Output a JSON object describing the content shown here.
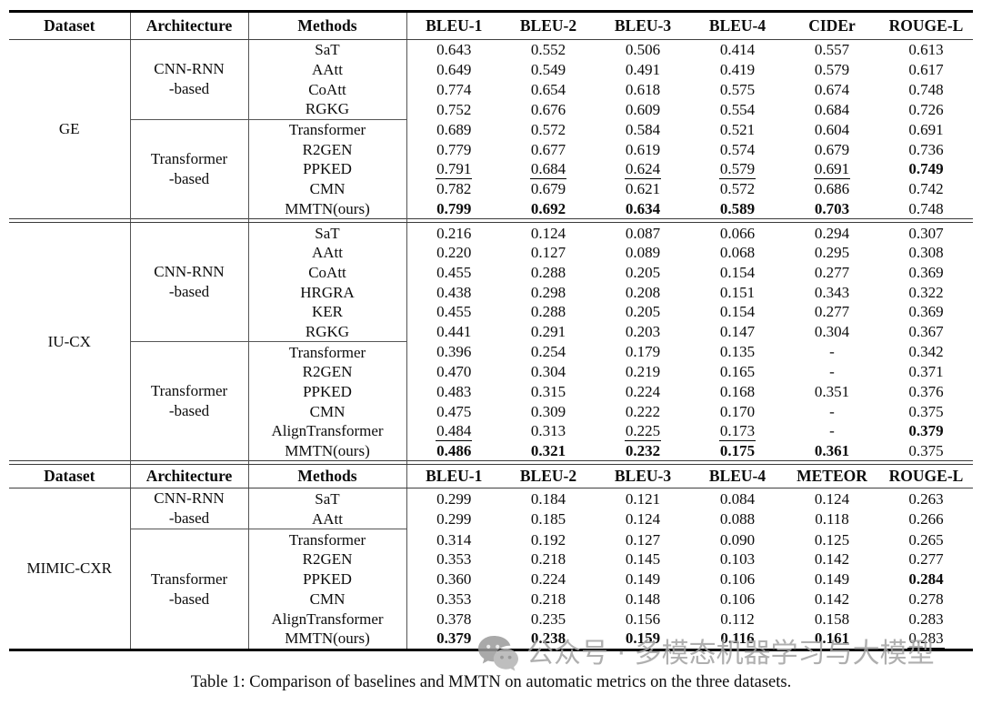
{
  "colors": {
    "text": "#0c0c0c",
    "thin_rule": "#555555",
    "thick_rule": "#000000",
    "watermark": "#a2a2a2"
  },
  "table": {
    "header1": {
      "dataset": "Dataset",
      "architecture": "Architecture",
      "methods": "Methods",
      "metrics": [
        "BLEU-1",
        "BLEU-2",
        "BLEU-3",
        "BLEU-4",
        "CIDEr",
        "ROUGE-L"
      ]
    },
    "header2": {
      "dataset": "Dataset",
      "architecture": "Architecture",
      "methods": "Methods",
      "metrics": [
        "BLEU-1",
        "BLEU-2",
        "BLEU-3",
        "BLEU-4",
        "METEOR",
        "ROUGE-L"
      ]
    },
    "sections": [
      {
        "dataset": "GE",
        "repeat_header": false,
        "groups": [
          {
            "architecture": "CNN-RNN\n-based",
            "rows": [
              {
                "method": "SaT",
                "values": [
                  "0.643",
                  "0.552",
                  "0.506",
                  "0.414",
                  "0.557",
                  "0.613"
                ],
                "styles": [
                  "",
                  "",
                  "",
                  "",
                  "",
                  ""
                ]
              },
              {
                "method": "AAtt",
                "values": [
                  "0.649",
                  "0.549",
                  "0.491",
                  "0.419",
                  "0.579",
                  "0.617"
                ],
                "styles": [
                  "",
                  "",
                  "",
                  "",
                  "",
                  ""
                ]
              },
              {
                "method": "CoAtt",
                "values": [
                  "0.774",
                  "0.654",
                  "0.618",
                  "0.575",
                  "0.674",
                  "0.748"
                ],
                "styles": [
                  "",
                  "",
                  "",
                  "",
                  "",
                  "u"
                ]
              },
              {
                "method": "RGKG",
                "values": [
                  "0.752",
                  "0.676",
                  "0.609",
                  "0.554",
                  "0.684",
                  "0.726"
                ],
                "styles": [
                  "",
                  "",
                  "",
                  "",
                  "",
                  ""
                ]
              }
            ]
          },
          {
            "architecture": "Transformer\n-based",
            "rows": [
              {
                "method": "Transformer",
                "values": [
                  "0.689",
                  "0.572",
                  "0.584",
                  "0.521",
                  "0.604",
                  "0.691"
                ],
                "styles": [
                  "",
                  "",
                  "",
                  "",
                  "",
                  ""
                ]
              },
              {
                "method": "R2GEN",
                "values": [
                  "0.779",
                  "0.677",
                  "0.619",
                  "0.574",
                  "0.679",
                  "0.736"
                ],
                "styles": [
                  "",
                  "",
                  "",
                  "",
                  "",
                  ""
                ]
              },
              {
                "method": "PPKED",
                "values": [
                  "0.791",
                  "0.684",
                  "0.624",
                  "0.579",
                  "0.691",
                  "0.749"
                ],
                "styles": [
                  "u",
                  "u",
                  "u",
                  "u",
                  "u",
                  "b"
                ]
              },
              {
                "method": "CMN",
                "values": [
                  "0.782",
                  "0.679",
                  "0.621",
                  "0.572",
                  "0.686",
                  "0.742"
                ],
                "styles": [
                  "",
                  "",
                  "",
                  "",
                  "",
                  ""
                ]
              },
              {
                "method": "MMTN(ours)",
                "values": [
                  "0.799",
                  "0.692",
                  "0.634",
                  "0.589",
                  "0.703",
                  "0.748"
                ],
                "styles": [
                  "b",
                  "b",
                  "b",
                  "b",
                  "b",
                  "u"
                ]
              }
            ]
          }
        ]
      },
      {
        "dataset": "IU-CX",
        "repeat_header": false,
        "groups": [
          {
            "architecture": "CNN-RNN\n-based",
            "rows": [
              {
                "method": "SaT",
                "values": [
                  "0.216",
                  "0.124",
                  "0.087",
                  "0.066",
                  "0.294",
                  "0.307"
                ],
                "styles": [
                  "",
                  "",
                  "",
                  "",
                  "",
                  ""
                ]
              },
              {
                "method": "AAtt",
                "values": [
                  "0.220",
                  "0.127",
                  "0.089",
                  "0.068",
                  "0.295",
                  "0.308"
                ],
                "styles": [
                  "",
                  "",
                  "",
                  "",
                  "",
                  ""
                ]
              },
              {
                "method": "CoAtt",
                "values": [
                  "0.455",
                  "0.288",
                  "0.205",
                  "0.154",
                  "0.277",
                  "0.369"
                ],
                "styles": [
                  "",
                  "",
                  "",
                  "",
                  "",
                  ""
                ]
              },
              {
                "method": "HRGRA",
                "values": [
                  "0.438",
                  "0.298",
                  "0.208",
                  "0.151",
                  "0.343",
                  "0.322"
                ],
                "styles": [
                  "",
                  "",
                  "",
                  "",
                  "",
                  ""
                ]
              },
              {
                "method": "KER",
                "values": [
                  "0.455",
                  "0.288",
                  "0.205",
                  "0.154",
                  "0.277",
                  "0.369"
                ],
                "styles": [
                  "",
                  "",
                  "",
                  "",
                  "",
                  ""
                ]
              },
              {
                "method": "RGKG",
                "values": [
                  "0.441",
                  "0.291",
                  "0.203",
                  "0.147",
                  "0.304",
                  "0.367"
                ],
                "styles": [
                  "",
                  "",
                  "",
                  "",
                  "",
                  ""
                ]
              }
            ]
          },
          {
            "architecture": "Transformer\n-based",
            "rows": [
              {
                "method": "Transformer",
                "values": [
                  "0.396",
                  "0.254",
                  "0.179",
                  "0.135",
                  "-",
                  "0.342"
                ],
                "styles": [
                  "",
                  "",
                  "",
                  "",
                  "",
                  ""
                ]
              },
              {
                "method": "R2GEN",
                "values": [
                  "0.470",
                  "0.304",
                  "0.219",
                  "0.165",
                  "-",
                  "0.371"
                ],
                "styles": [
                  "",
                  "",
                  "",
                  "",
                  "",
                  ""
                ]
              },
              {
                "method": "PPKED",
                "values": [
                  "0.483",
                  "0.315",
                  "0.224",
                  "0.168",
                  "0.351",
                  "0.376"
                ],
                "styles": [
                  "",
                  "u",
                  "",
                  "",
                  "u",
                  "u"
                ]
              },
              {
                "method": "CMN",
                "values": [
                  "0.475",
                  "0.309",
                  "0.222",
                  "0.170",
                  "-",
                  "0.375"
                ],
                "styles": [
                  "",
                  "",
                  "",
                  "",
                  "",
                  ""
                ]
              },
              {
                "method": "AlignTransformer",
                "values": [
                  "0.484",
                  "0.313",
                  "0.225",
                  "0.173",
                  "-",
                  "0.379"
                ],
                "styles": [
                  "u",
                  "",
                  "u",
                  "u",
                  "",
                  "b"
                ]
              },
              {
                "method": "MMTN(ours)",
                "values": [
                  "0.486",
                  "0.321",
                  "0.232",
                  "0.175",
                  "0.361",
                  "0.375"
                ],
                "styles": [
                  "b",
                  "b",
                  "b",
                  "b",
                  "b",
                  ""
                ]
              }
            ]
          }
        ]
      },
      {
        "dataset": "MIMIC-CXR",
        "repeat_header": true,
        "groups": [
          {
            "architecture": "CNN-RNN\n-based",
            "rows": [
              {
                "method": "SaT",
                "values": [
                  "0.299",
                  "0.184",
                  "0.121",
                  "0.084",
                  "0.124",
                  "0.263"
                ],
                "styles": [
                  "",
                  "",
                  "",
                  "",
                  "",
                  ""
                ]
              },
              {
                "method": "AAtt",
                "values": [
                  "0.299",
                  "0.185",
                  "0.124",
                  "0.088",
                  "0.118",
                  "0.266"
                ],
                "styles": [
                  "",
                  "",
                  "",
                  "",
                  "",
                  ""
                ]
              }
            ]
          },
          {
            "architecture": "Transformer\n-based",
            "rows": [
              {
                "method": "Transformer",
                "values": [
                  "0.314",
                  "0.192",
                  "0.127",
                  "0.090",
                  "0.125",
                  "0.265"
                ],
                "styles": [
                  "",
                  "",
                  "",
                  "",
                  "",
                  ""
                ]
              },
              {
                "method": "R2GEN",
                "values": [
                  "0.353",
                  "0.218",
                  "0.145",
                  "0.103",
                  "0.142",
                  "0.277"
                ],
                "styles": [
                  "",
                  "",
                  "",
                  "",
                  "",
                  ""
                ]
              },
              {
                "method": "PPKED",
                "values": [
                  "0.360",
                  "0.224",
                  "0.149",
                  "0.106",
                  "0.149",
                  "0.284"
                ],
                "styles": [
                  "",
                  "",
                  "",
                  "",
                  "",
                  "b"
                ]
              },
              {
                "method": "CMN",
                "values": [
                  "0.353",
                  "0.218",
                  "0.148",
                  "0.106",
                  "0.142",
                  "0.278"
                ],
                "styles": [
                  "",
                  "",
                  "",
                  "",
                  "",
                  ""
                ]
              },
              {
                "method": "AlignTransformer",
                "values": [
                  "0.378",
                  "0.235",
                  "0.156",
                  "0.112",
                  "0.158",
                  "0.283"
                ],
                "styles": [
                  "u",
                  "u",
                  "u",
                  "u",
                  "u",
                  "u"
                ]
              },
              {
                "method": "MMTN(ours)",
                "values": [
                  "0.379",
                  "0.238",
                  "0.159",
                  "0.116",
                  "0.161",
                  "0.283"
                ],
                "styles": [
                  "b",
                  "b",
                  "b",
                  "b",
                  "b",
                  "u"
                ]
              }
            ]
          }
        ]
      }
    ]
  },
  "caption": "Table 1: Comparison of baselines and MMTN on automatic metrics on the three datasets.",
  "watermark": {
    "icon": "wechat-icon",
    "text": "公众号 · 多模态机器学习与大模型"
  }
}
